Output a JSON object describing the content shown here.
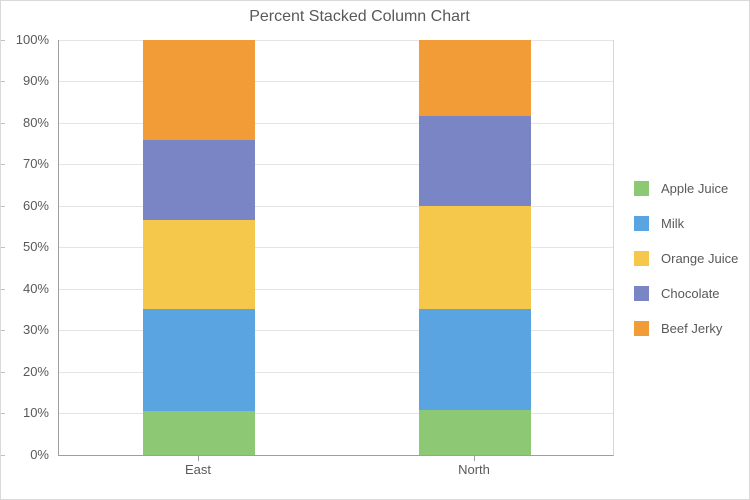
{
  "chart_data": {
    "type": "bar",
    "subtype": "percent-stacked-column",
    "title": "Percent Stacked Column Chart",
    "xlabel": "",
    "ylabel": "",
    "categories": [
      "East",
      "North"
    ],
    "series": [
      {
        "name": "Apple Juice",
        "color": "#8dc975",
        "values": [
          10.7,
          10.8
        ]
      },
      {
        "name": "Milk",
        "color": "#5aa4e2",
        "values": [
          24.4,
          24.3
        ]
      },
      {
        "name": "Orange Juice",
        "color": "#f5c84b",
        "values": [
          21.6,
          24.9
        ]
      },
      {
        "name": "Chocolate",
        "color": "#7a85c6",
        "values": [
          19.3,
          21.7
        ]
      },
      {
        "name": "Beef Jerky",
        "color": "#f29c38",
        "values": [
          24.0,
          18.3
        ]
      }
    ],
    "values_unit": "percent",
    "y_axis": {
      "min": 0,
      "max": 100,
      "step": 10,
      "labels": [
        "0%",
        "10%",
        "20%",
        "30%",
        "40%",
        "50%",
        "60%",
        "70%",
        "80%",
        "90%",
        "100%"
      ]
    },
    "grid": true,
    "legend": {
      "position": "right",
      "entries": [
        "Apple Juice",
        "Milk",
        "Orange Juice",
        "Chocolate",
        "Beef Jerky"
      ]
    }
  }
}
